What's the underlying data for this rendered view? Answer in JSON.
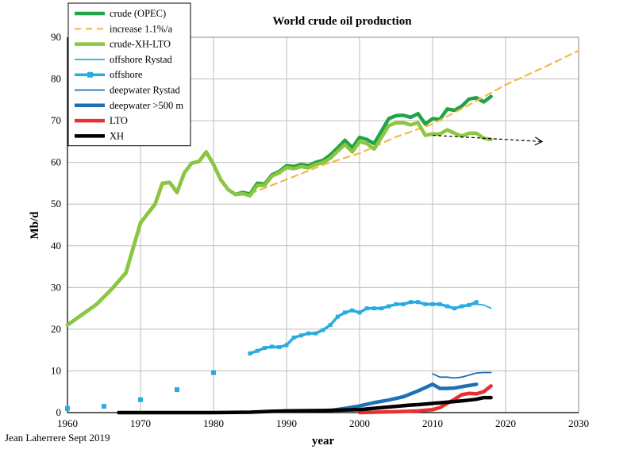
{
  "chart_data": {
    "type": "line",
    "title": "World crude oil production",
    "xlabel": "year",
    "ylabel": "Mb/d",
    "credit": "Jean Laherrere Sept 2019",
    "xlim": [
      1960,
      2030
    ],
    "ylim": [
      0,
      90
    ],
    "x_ticks": [
      "1960",
      "1970",
      "1980",
      "1990",
      "2000",
      "2010",
      "2020",
      "2030"
    ],
    "y_ticks": [
      "0",
      "10",
      "20",
      "30",
      "40",
      "50",
      "60",
      "70",
      "80",
      "90"
    ],
    "grid": true,
    "legend_position": "top-left",
    "series": [
      {
        "name": "crude (OPEC)",
        "color": "#22a347",
        "style": "thick",
        "points": [
          [
            1960,
            21
          ],
          [
            1962,
            23.5
          ],
          [
            1964,
            26
          ],
          [
            1966,
            29.5
          ],
          [
            1968,
            33.5
          ],
          [
            1970,
            45.5
          ],
          [
            1972,
            50
          ],
          [
            1973,
            55
          ],
          [
            1974,
            55.2
          ],
          [
            1975,
            52.8
          ],
          [
            1976,
            57.5
          ],
          [
            1977,
            59.8
          ],
          [
            1978,
            60.2
          ],
          [
            1979,
            62.5
          ],
          [
            1980,
            59.5
          ],
          [
            1981,
            55.8
          ],
          [
            1982,
            53.5
          ],
          [
            1983,
            52.3
          ],
          [
            1984,
            52.8
          ],
          [
            1985,
            52.4
          ],
          [
            1986,
            55
          ],
          [
            1987,
            54.8
          ],
          [
            1988,
            57
          ],
          [
            1989,
            57.8
          ],
          [
            1990,
            59.2
          ],
          [
            1991,
            59
          ],
          [
            1992,
            59.5
          ],
          [
            1993,
            59.2
          ],
          [
            1994,
            60
          ],
          [
            1995,
            60.5
          ],
          [
            1996,
            61.8
          ],
          [
            1997,
            63.5
          ],
          [
            1998,
            65.3
          ],
          [
            1999,
            63.5
          ],
          [
            2000,
            66
          ],
          [
            2001,
            65.5
          ],
          [
            2002,
            64.5
          ],
          [
            2003,
            67.5
          ],
          [
            2004,
            70.5
          ],
          [
            2005,
            71.2
          ],
          [
            2006,
            71.3
          ],
          [
            2007,
            70.8
          ],
          [
            2008,
            71.7
          ],
          [
            2009,
            69.2
          ],
          [
            2010,
            70.5
          ],
          [
            2011,
            70.3
          ],
          [
            2012,
            72.8
          ],
          [
            2013,
            72.5
          ],
          [
            2014,
            73.5
          ],
          [
            2015,
            75.2
          ],
          [
            2016,
            75.5
          ],
          [
            2017,
            74.5
          ],
          [
            2018,
            75.8
          ]
        ]
      },
      {
        "name": "increase 1.1%/a",
        "color": "#f5b942",
        "style": "dashed",
        "points": [
          [
            1985,
            52.5
          ],
          [
            1990,
            55.9
          ],
          [
            1995,
            59.4
          ],
          [
            2000,
            62.2
          ],
          [
            2005,
            66.1
          ],
          [
            2010,
            69.2
          ],
          [
            2015,
            73.8
          ],
          [
            2020,
            78.6
          ],
          [
            2025,
            82.6
          ],
          [
            2030,
            86.8
          ]
        ]
      },
      {
        "name": "crude-XH-LTO",
        "color": "#8cc63f",
        "style": "thick",
        "points": [
          [
            1960,
            21
          ],
          [
            1962,
            23.5
          ],
          [
            1964,
            26
          ],
          [
            1966,
            29.5
          ],
          [
            1968,
            33.5
          ],
          [
            1970,
            45.5
          ],
          [
            1972,
            50
          ],
          [
            1973,
            55
          ],
          [
            1974,
            55.2
          ],
          [
            1975,
            52.8
          ],
          [
            1976,
            57.5
          ],
          [
            1977,
            59.8
          ],
          [
            1978,
            60.2
          ],
          [
            1979,
            62.5
          ],
          [
            1980,
            59.5
          ],
          [
            1981,
            55.8
          ],
          [
            1982,
            53.5
          ],
          [
            1983,
            52.3
          ],
          [
            1984,
            52.5
          ],
          [
            1985,
            52
          ],
          [
            1986,
            54.5
          ],
          [
            1987,
            54.5
          ],
          [
            1988,
            56.7
          ],
          [
            1989,
            57.5
          ],
          [
            1990,
            58.8
          ],
          [
            1991,
            58.5
          ],
          [
            1992,
            59
          ],
          [
            1993,
            58.7
          ],
          [
            1994,
            59.5
          ],
          [
            1995,
            60
          ],
          [
            1996,
            61
          ],
          [
            1997,
            62.7
          ],
          [
            1998,
            64.3
          ],
          [
            1999,
            62.5
          ],
          [
            2000,
            65
          ],
          [
            2001,
            64.5
          ],
          [
            2002,
            63.2
          ],
          [
            2003,
            66
          ],
          [
            2004,
            68.8
          ],
          [
            2005,
            69.5
          ],
          [
            2006,
            69.5
          ],
          [
            2007,
            69
          ],
          [
            2008,
            69.5
          ],
          [
            2009,
            66.5
          ],
          [
            2010,
            66.8
          ],
          [
            2011,
            66.8
          ],
          [
            2012,
            67.8
          ],
          [
            2013,
            67
          ],
          [
            2014,
            66.3
          ],
          [
            2015,
            67
          ],
          [
            2016,
            67
          ],
          [
            2017,
            65.8
          ],
          [
            2018,
            65.5
          ]
        ]
      },
      {
        "name": "offshore Rystad",
        "color": "#29abe2",
        "style": "thin",
        "points": [
          [
            2010,
            26
          ],
          [
            2011,
            25.8
          ],
          [
            2012,
            25.5
          ],
          [
            2013,
            25.2
          ],
          [
            2014,
            25.5
          ],
          [
            2015,
            25.8
          ],
          [
            2016,
            26
          ],
          [
            2017,
            25.8
          ],
          [
            2018,
            25
          ]
        ]
      },
      {
        "name": "offshore",
        "color": "#29abe2",
        "style": "thick-markers",
        "points": [
          [
            1960,
            1
          ],
          [
            1965,
            1.5
          ],
          [
            1970,
            3.1
          ],
          [
            1975,
            5.5
          ],
          [
            1980,
            9.6
          ],
          [
            1985,
            14.2
          ],
          [
            1986,
            14.8
          ],
          [
            1987,
            15.5
          ],
          [
            1988,
            15.8
          ],
          [
            1989,
            15.7
          ],
          [
            1990,
            16.2
          ],
          [
            1991,
            18
          ],
          [
            1992,
            18.5
          ],
          [
            1993,
            19
          ],
          [
            1994,
            19
          ],
          [
            1995,
            19.8
          ],
          [
            1996,
            21
          ],
          [
            1997,
            23
          ],
          [
            1998,
            24
          ],
          [
            1999,
            24.5
          ],
          [
            2000,
            24
          ],
          [
            2001,
            25
          ],
          [
            2002,
            25
          ],
          [
            2003,
            25
          ],
          [
            2004,
            25.5
          ],
          [
            2005,
            26
          ],
          [
            2006,
            26
          ],
          [
            2007,
            26.5
          ],
          [
            2008,
            26.5
          ],
          [
            2009,
            26
          ],
          [
            2010,
            26
          ],
          [
            2011,
            26
          ],
          [
            2012,
            25.5
          ],
          [
            2013,
            25
          ],
          [
            2014,
            25.5
          ],
          [
            2015,
            25.8
          ],
          [
            2016,
            26.5
          ]
        ]
      },
      {
        "name": "deepwater Rystad",
        "color": "#1f6fb5",
        "style": "thin",
        "points": [
          [
            2010,
            9.3
          ],
          [
            2011,
            8.5
          ],
          [
            2012,
            8.5
          ],
          [
            2013,
            8.3
          ],
          [
            2014,
            8.5
          ],
          [
            2015,
            9
          ],
          [
            2016,
            9.5
          ],
          [
            2017,
            9.6
          ],
          [
            2018,
            9.6
          ]
        ]
      },
      {
        "name": "deepwater >500 m",
        "color": "#1f6fb5",
        "style": "thick",
        "points": [
          [
            1996,
            0.5
          ],
          [
            1998,
            1
          ],
          [
            2000,
            1.6
          ],
          [
            2002,
            2.4
          ],
          [
            2004,
            3
          ],
          [
            2006,
            3.8
          ],
          [
            2008,
            5.2
          ],
          [
            2010,
            6.8
          ],
          [
            2011,
            5.8
          ],
          [
            2012,
            5.8
          ],
          [
            2013,
            5.9
          ],
          [
            2014,
            6.2
          ],
          [
            2015,
            6.5
          ],
          [
            2016,
            6.8
          ]
        ]
      },
      {
        "name": "LTO",
        "color": "#e8312f",
        "style": "thick",
        "points": [
          [
            2000,
            0
          ],
          [
            2005,
            0.2
          ],
          [
            2008,
            0.4
          ],
          [
            2010,
            0.7
          ],
          [
            2011,
            1.2
          ],
          [
            2012,
            2.2
          ],
          [
            2013,
            3.2
          ],
          [
            2014,
            4.3
          ],
          [
            2015,
            4.6
          ],
          [
            2016,
            4.5
          ],
          [
            2017,
            5
          ],
          [
            2018,
            6.4
          ]
        ]
      },
      {
        "name": "XH",
        "color": "#000000",
        "style": "thick",
        "points": [
          [
            1967,
            0
          ],
          [
            1970,
            0
          ],
          [
            1975,
            0
          ],
          [
            1980,
            0
          ],
          [
            1985,
            0.1
          ],
          [
            1988,
            0.3
          ],
          [
            1990,
            0.4
          ],
          [
            1995,
            0.5
          ],
          [
            2000,
            0.7
          ],
          [
            2003,
            1.2
          ],
          [
            2005,
            1.5
          ],
          [
            2007,
            1.8
          ],
          [
            2008,
            1.9
          ],
          [
            2010,
            2.2
          ],
          [
            2012,
            2.5
          ],
          [
            2014,
            2.8
          ],
          [
            2016,
            3.2
          ],
          [
            2017,
            3.6
          ],
          [
            2018,
            3.6
          ]
        ]
      }
    ],
    "annotations": [
      {
        "type": "dashed-arrow",
        "from": [
          2010,
          66.5
        ],
        "to": [
          2025,
          65
        ]
      }
    ]
  }
}
